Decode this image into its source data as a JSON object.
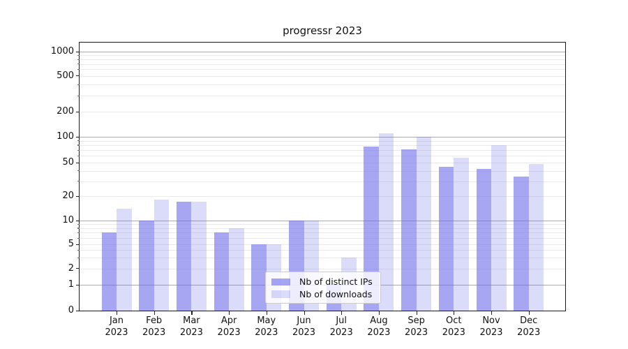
{
  "chart_data": {
    "type": "bar",
    "title": "progressr 2023",
    "x_months": [
      "Jan",
      "Feb",
      "Mar",
      "Apr",
      "May",
      "Jun",
      "Jul",
      "Aug",
      "Sep",
      "Oct",
      "Nov",
      "Dec"
    ],
    "x_year": "2023",
    "series": [
      {
        "name": "Nb of distinct IPs",
        "color": "rgba(102,102,235,0.58)",
        "values": [
          7,
          10,
          17,
          7,
          5,
          10,
          1,
          77,
          71,
          45,
          42,
          34
        ]
      },
      {
        "name": "Nb of downloads",
        "color": "rgba(102,102,235,0.235)",
        "values": [
          14,
          18,
          17,
          8,
          5,
          10,
          3,
          110,
          100,
          57,
          80,
          48
        ]
      }
    ],
    "yticks": [
      0,
      1,
      2,
      5,
      10,
      20,
      50,
      100,
      200,
      500,
      1000
    ],
    "ylim": [
      0,
      1050
    ],
    "yscale": "log above 1, compressed linear 0-1",
    "grid": {
      "major_values": [
        1,
        10,
        100,
        1000
      ],
      "minor_values": [
        2,
        3,
        4,
        5,
        6,
        7,
        8,
        9,
        20,
        30,
        40,
        50,
        60,
        70,
        80,
        90,
        200,
        300,
        400,
        500,
        600,
        700,
        800,
        900
      ]
    },
    "legend_position": "lower center"
  }
}
